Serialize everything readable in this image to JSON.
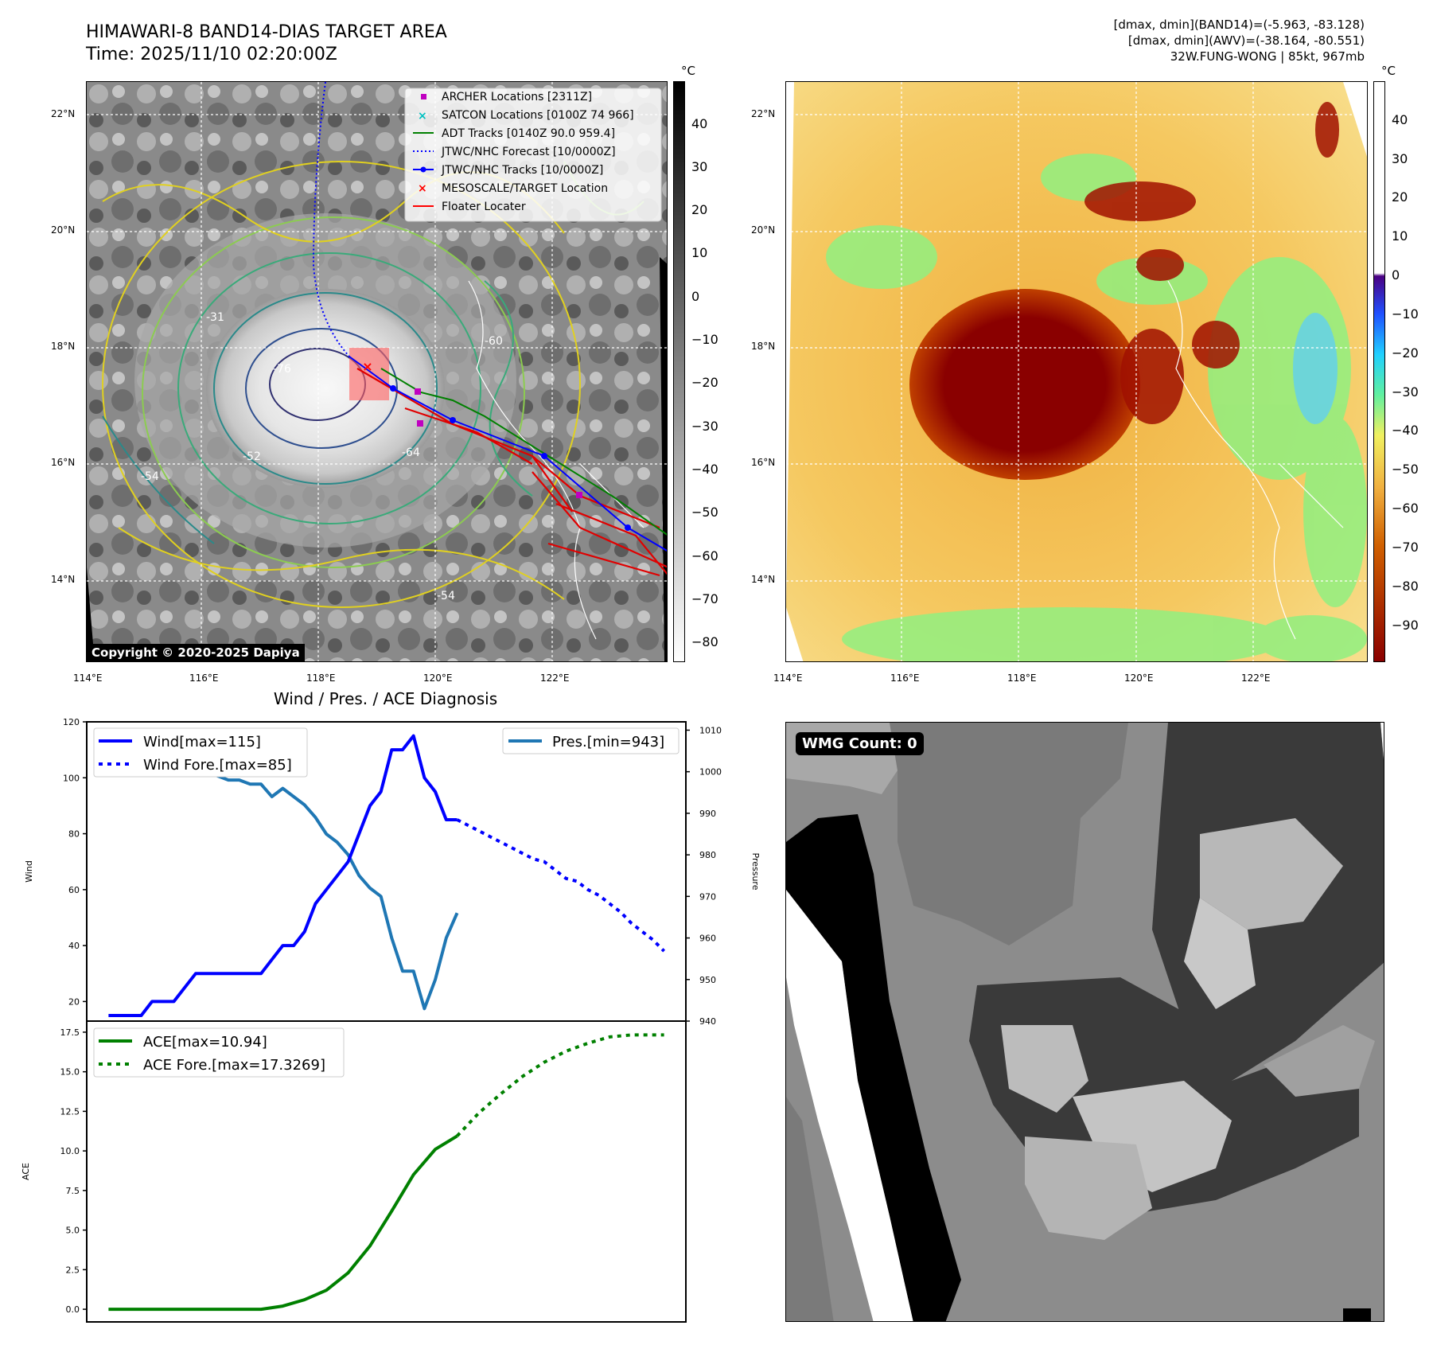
{
  "header": {
    "title_line1": "HIMAWARI-8 BAND14-DIAS TARGET AREA",
    "title_line2": "Time: 2025/11/10 02:20:00Z",
    "stats_line1": "[dmax, dmin](BAND14)=(-5.963, -83.128)",
    "stats_line2": "[dmax, dmin](AWV)=(-38.164, -80.551)",
    "stats_line3": "32W.FUNG-WONG | 85kt, 967mb"
  },
  "ir_map": {
    "lon_labels": [
      "114°E",
      "116°E",
      "118°E",
      "120°E",
      "122°E"
    ],
    "lat_labels": [
      "22°N",
      "20°N",
      "18°N",
      "16°N",
      "14°N"
    ],
    "colorbar_unit": "°C",
    "colorbar_ticks": [
      "40",
      "30",
      "20",
      "10",
      "0",
      "−10",
      "−20",
      "−30",
      "−40",
      "−50",
      "−60",
      "−70",
      "−80"
    ],
    "copyright": "Copyright © 2020-2025 Dapiya",
    "legend": [
      {
        "label": "ARCHER Locations [2311Z]",
        "color": "#c000c0"
      },
      {
        "label": "SATCON Locations [0100Z 74 966]",
        "color": "#00c0c0"
      },
      {
        "label": "ADT Tracks [0140Z 90.0 959.4]",
        "color": "#008000"
      },
      {
        "label": "JTWC/NHC Forecast [10/0000Z]",
        "color": "#0000ff"
      },
      {
        "label": "JTWC/NHC Tracks [10/0000Z]",
        "color": "#0000ff"
      },
      {
        "label": "MESOSCALE/TARGET Location",
        "color": "#ff0000"
      },
      {
        "label": "Floater Locater",
        "color": "#ff0000"
      }
    ],
    "contour_labels": [
      "-76",
      "-64",
      "-54",
      "-52",
      "-31",
      "-60",
      "-54"
    ]
  },
  "awv_map": {
    "lon_labels": [
      "114°E",
      "116°E",
      "118°E",
      "120°E",
      "122°E"
    ],
    "lat_labels": [
      "22°N",
      "20°N",
      "18°N",
      "16°N",
      "14°N"
    ],
    "colorbar_unit": "°C",
    "colorbar_ticks": [
      "40",
      "30",
      "20",
      "10",
      "0",
      "−10",
      "−20",
      "−30",
      "−40",
      "−50",
      "−60",
      "−70",
      "−80",
      "−90"
    ]
  },
  "diag_title": "Wind / Pres. / ACE Diagnosis",
  "wmg_label": "WMG Count: 0",
  "chart_data": [
    {
      "type": "line",
      "title": "Wind / Pres. / ACE Diagnosis",
      "ylabel": "Wind",
      "y2label": "Pressure",
      "ylim": [
        13,
        120
      ],
      "y2lim": [
        940,
        1012
      ],
      "yticks": [
        20,
        40,
        60,
        80,
        100,
        120
      ],
      "y2ticks": [
        940,
        950,
        960,
        970,
        980,
        990,
        1000,
        1010
      ],
      "xlim": [
        -1,
        54
      ],
      "series": [
        {
          "name": "Wind[max=115]",
          "color": "#0000ff",
          "style": "solid",
          "axis": "left",
          "x": [
            1,
            2,
            3,
            4,
            5,
            6,
            7,
            8,
            9,
            10,
            11,
            12,
            13,
            14,
            15,
            16,
            17,
            18,
            19,
            20,
            21,
            22,
            23,
            24,
            25,
            26,
            27,
            28,
            29,
            30,
            31,
            32,
            33
          ],
          "y": [
            15,
            15,
            15,
            15,
            20,
            20,
            20,
            25,
            30,
            30,
            30,
            30,
            30,
            30,
            30,
            35,
            40,
            40,
            45,
            55,
            60,
            65,
            70,
            80,
            90,
            95,
            110,
            110,
            115,
            100,
            95,
            85,
            85
          ]
        },
        {
          "name": "Wind Fore.[max=85]",
          "color": "#0000ff",
          "style": "dotted",
          "axis": "left",
          "x": [
            33,
            34,
            35,
            36,
            37,
            38,
            39,
            40,
            41,
            42,
            43,
            44,
            45,
            46,
            47,
            48,
            49,
            50,
            51,
            52
          ],
          "y": [
            85,
            83,
            81,
            79,
            77,
            75,
            73,
            71,
            70,
            67,
            64,
            63,
            60,
            58,
            55,
            52,
            48,
            45,
            42,
            38
          ]
        },
        {
          "name": "Pres.[min=943]",
          "color": "#1f77b4",
          "style": "solid",
          "axis": "right",
          "x": [
            1,
            2,
            3,
            4,
            5,
            6,
            7,
            8,
            9,
            10,
            11,
            12,
            13,
            14,
            15,
            16,
            17,
            18,
            19,
            20,
            21,
            22,
            23,
            24,
            25,
            26,
            27,
            28,
            29,
            30,
            31,
            32,
            33
          ],
          "y": [
            1008,
            1005,
            1005,
            1005,
            1004,
            1003,
            1000,
            1000,
            1000,
            1000,
            999,
            998,
            998,
            997,
            997,
            994,
            996,
            994,
            992,
            989,
            985,
            983,
            980,
            975,
            972,
            970,
            960,
            952,
            952,
            943,
            950,
            960,
            966
          ]
        }
      ]
    },
    {
      "type": "line",
      "ylabel": "ACE",
      "ylim": [
        -0.8,
        18.2
      ],
      "yticks": [
        0.0,
        2.5,
        5.0,
        7.5,
        10.0,
        12.5,
        15.0,
        17.5
      ],
      "xlim": [
        -1,
        54
      ],
      "series": [
        {
          "name": "ACE[max=10.94]",
          "color": "#008000",
          "style": "solid",
          "x": [
            1,
            3,
            5,
            7,
            9,
            11,
            13,
            15,
            17,
            19,
            21,
            23,
            25,
            27,
            29,
            31,
            33
          ],
          "y": [
            0,
            0,
            0,
            0,
            0,
            0,
            0,
            0,
            0.2,
            0.6,
            1.2,
            2.3,
            4.0,
            6.2,
            8.5,
            10.1,
            10.94
          ]
        },
        {
          "name": "ACE Fore.[max=17.3269]",
          "color": "#008000",
          "style": "dotted",
          "x": [
            33,
            35,
            37,
            39,
            41,
            43,
            45,
            47,
            49,
            51,
            52
          ],
          "y": [
            10.94,
            12.4,
            13.6,
            14.7,
            15.6,
            16.3,
            16.8,
            17.2,
            17.3269,
            17.3269,
            17.3269
          ]
        }
      ]
    }
  ]
}
